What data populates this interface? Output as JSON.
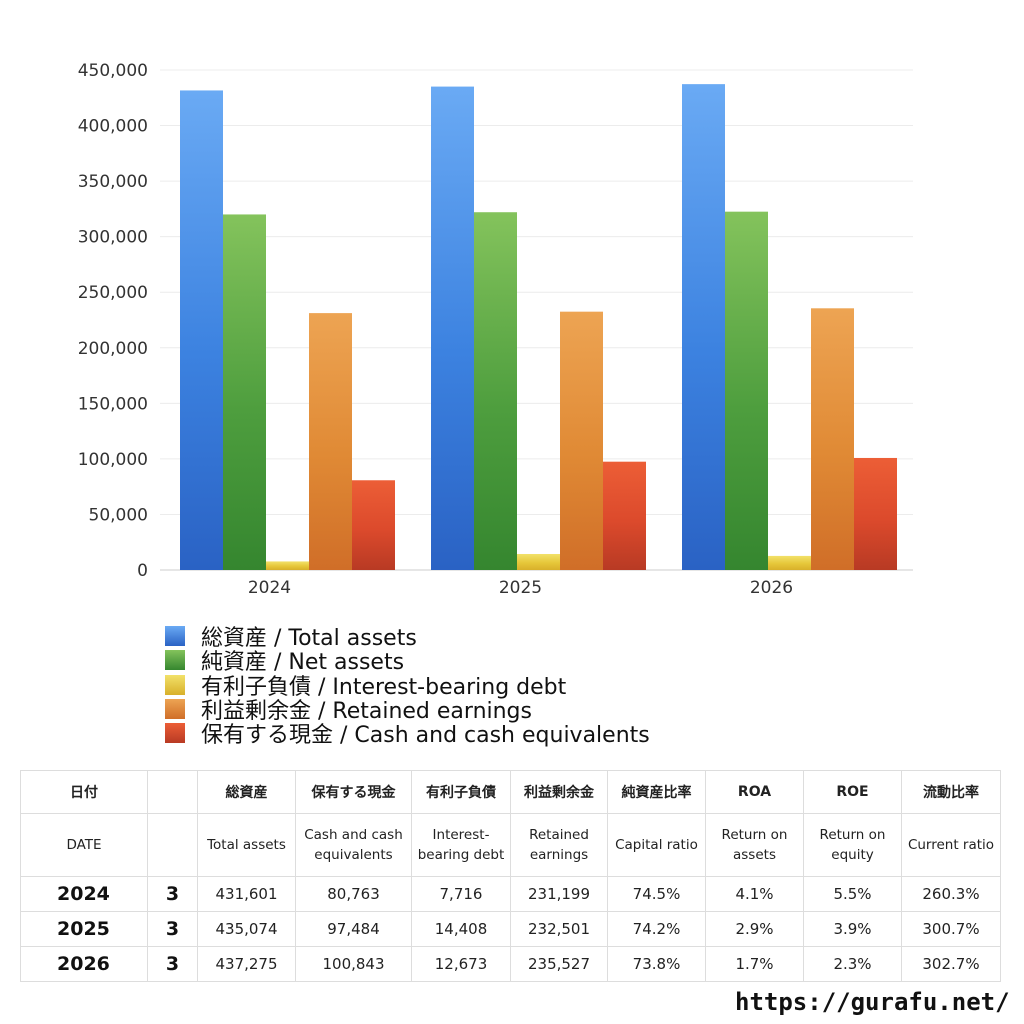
{
  "chart_data": {
    "type": "bar",
    "categories": [
      "2024",
      "2025",
      "2026"
    ],
    "ylim": [
      0,
      450000
    ],
    "yticks": [
      "0",
      "50,000",
      "100,000",
      "150,000",
      "200,000",
      "250,000",
      "300,000",
      "350,000",
      "400,000",
      "450,000"
    ],
    "series": [
      {
        "name": "総資産 / Total assets",
        "values": [
          431601,
          435074,
          437275
        ],
        "color": "#3c82e0",
        "color_light": "#6aaaf4",
        "color_dark": "#2a62c4"
      },
      {
        "name": "純資産 / Net assets",
        "values": [
          320000,
          322000,
          322500
        ],
        "color": "#4e9e3e",
        "color_light": "#84c35c",
        "color_dark": "#35862f"
      },
      {
        "name": "有利子負債 / Interest-bearing debt",
        "values": [
          7716,
          14408,
          12673
        ],
        "color": "#e6c73a",
        "color_light": "#f2e16a",
        "color_dark": "#d8b02a"
      },
      {
        "name": "利益剰余金 / Retained earnings",
        "values": [
          231199,
          232501,
          235527
        ],
        "color": "#e08a35",
        "color_light": "#eda453",
        "color_dark": "#d06e28"
      },
      {
        "name": "保有する現金 /  Cash and cash equivalents",
        "values": [
          80763,
          97484,
          100843
        ],
        "color": "#dc4a2c",
        "color_light": "#ec5e36",
        "color_dark": "#b83a24"
      }
    ],
    "grid": true,
    "legend_position": "bottom-left"
  },
  "table": {
    "header_ja": [
      "日付",
      "",
      "総資産",
      "保有する現金",
      "有利子負債",
      "利益剰余金",
      "純資産比率",
      "ROA",
      "ROE",
      "流動比率"
    ],
    "header_en": [
      "DATE",
      "",
      "Total assets",
      "Cash and cash equivalents",
      "Interest-bearing debt",
      "Retained earnings",
      "Capital ratio",
      "Return on assets",
      "Return on equity",
      "Current ratio"
    ],
    "rows": [
      [
        "2024",
        "3",
        "431,601",
        "80,763",
        "7,716",
        "231,199",
        "74.5%",
        "4.1%",
        "5.5%",
        "260.3%"
      ],
      [
        "2025",
        "3",
        "435,074",
        "97,484",
        "14,408",
        "232,501",
        "74.2%",
        "2.9%",
        "3.9%",
        "300.7%"
      ],
      [
        "2026",
        "3",
        "437,275",
        "100,843",
        "12,673",
        "235,527",
        "73.8%",
        "1.7%",
        "2.3%",
        "302.7%"
      ]
    ]
  },
  "footer": {
    "url": "https://gurafu.net/"
  }
}
